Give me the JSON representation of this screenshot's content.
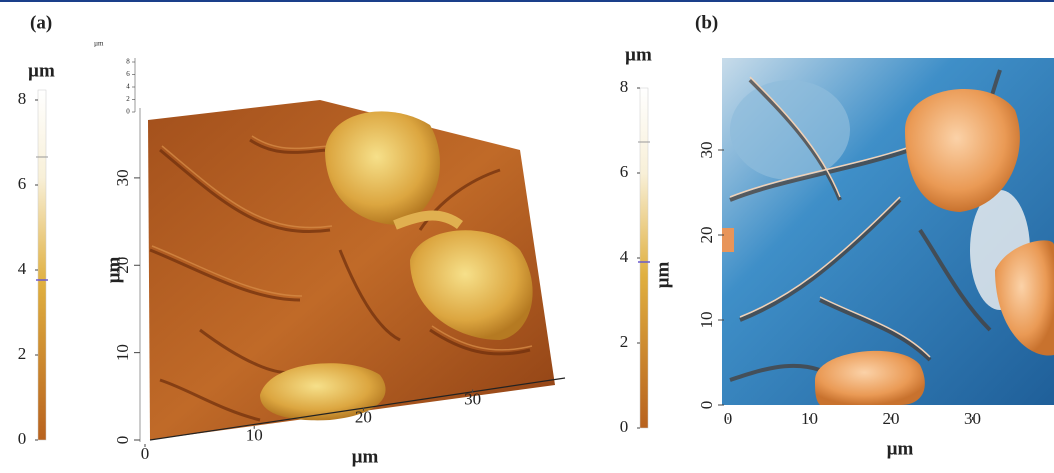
{
  "panels": [
    {
      "label": "(a)",
      "colorbar": {
        "unit": "µm",
        "lim": [
          0,
          8
        ],
        "ticks": [
          0,
          2,
          4,
          6,
          8
        ]
      },
      "z_axis": {
        "unit": "µm",
        "lim": [
          0,
          8
        ],
        "ticks": [
          0,
          2,
          4,
          6,
          8
        ]
      },
      "x_axis": {
        "label": "µm",
        "lim": [
          0,
          38
        ],
        "ticks": [
          0,
          10,
          20,
          30
        ]
      },
      "y_axis": {
        "label": "µm",
        "lim": [
          0,
          38
        ],
        "ticks": [
          0,
          10,
          20,
          30
        ]
      }
    },
    {
      "label": "(b)",
      "colorbar": {
        "unit": "µm",
        "label": "µm",
        "lim": [
          0,
          8
        ],
        "ticks": [
          0,
          2,
          4,
          6,
          8
        ]
      },
      "x_axis": {
        "label": "µm",
        "lim": [
          0,
          40
        ],
        "ticks": [
          0,
          10,
          20,
          30
        ]
      },
      "y_axis": {
        "lim": [
          0,
          40
        ],
        "ticks": [
          0,
          10,
          20,
          30
        ]
      }
    }
  ]
}
